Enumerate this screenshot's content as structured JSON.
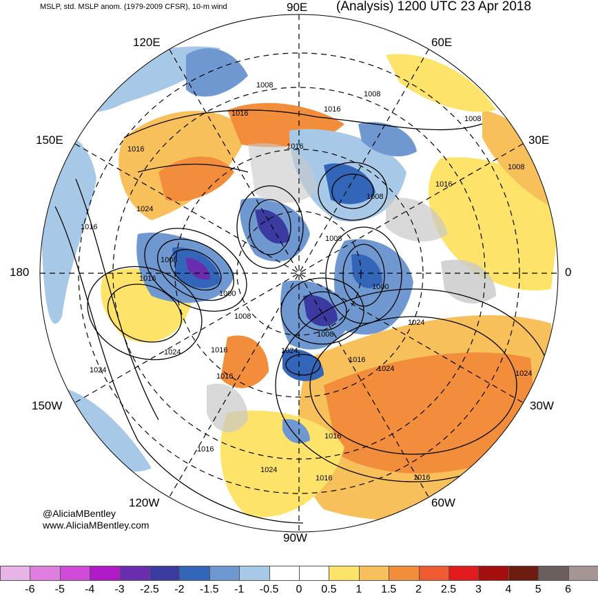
{
  "header": {
    "product": "MSLP, std. MSLP anom. (1979-2009 CFSR), 10-m wind",
    "valid": "(Analysis) 1200 UTC 23 Apr 2018"
  },
  "longitude_labels": {
    "e90": "90E",
    "e60": "60E",
    "e30": "30E",
    "zero": "0",
    "w30": "30W",
    "w60": "60W",
    "w90": "90W",
    "w120": "120W",
    "w150": "150W",
    "dl180": "180",
    "e150": "150E",
    "e120": "120E"
  },
  "credits": {
    "handle": "@AliciaMBentley",
    "site": "www.AliciaMBentley.com"
  },
  "isobar_labels": [
    {
      "text": "1008",
      "region": "east-siberia"
    },
    {
      "text": "1008",
      "region": "central-asia"
    },
    {
      "text": "1016",
      "region": "mongolia"
    },
    {
      "text": "1008",
      "region": "europe-north"
    },
    {
      "text": "1008",
      "region": "west-europe"
    },
    {
      "text": "1016",
      "region": "china"
    },
    {
      "text": "1016",
      "region": "east-asia"
    },
    {
      "text": "1016",
      "region": "near-east"
    },
    {
      "text": "1024",
      "region": "pacific-west"
    },
    {
      "text": "1008",
      "region": "scandinavia"
    },
    {
      "text": "1008",
      "region": "arctic"
    },
    {
      "text": "1016",
      "region": "north-pacific"
    },
    {
      "text": "1008",
      "region": "bering-low"
    },
    {
      "text": "1016",
      "region": "bering-sea"
    },
    {
      "text": "1000",
      "region": "aleutian-low"
    },
    {
      "text": "1000",
      "region": "iceland-low"
    },
    {
      "text": "1008",
      "region": "alaska"
    },
    {
      "text": "1008",
      "region": "canada"
    },
    {
      "text": "1024",
      "region": "atlantic-high"
    },
    {
      "text": "1024",
      "region": "gulf-of-alaska"
    },
    {
      "text": "1016",
      "region": "pacific-northwest"
    },
    {
      "text": "1024",
      "region": "canada-high"
    },
    {
      "text": "1024",
      "region": "hudson-bay"
    },
    {
      "text": "1016",
      "region": "labrador"
    },
    {
      "text": "1024",
      "region": "central-atlantic"
    },
    {
      "text": "1016",
      "region": "azores"
    },
    {
      "text": "1024",
      "region": "california"
    },
    {
      "text": "1016",
      "region": "subtropical-pacific"
    },
    {
      "text": "1016",
      "region": "gulf-of-mexico"
    },
    {
      "text": "1024",
      "region": "western-atlantic"
    },
    {
      "text": "1016",
      "region": "mexico"
    },
    {
      "text": "1016",
      "region": "caribbean"
    },
    {
      "text": "1016",
      "region": "mid-atlantic-south"
    }
  ],
  "colorbar": {
    "labels": [
      "-6",
      "-5",
      "-4",
      "-3",
      "-2.5",
      "-2",
      "-1.5",
      "-1",
      "-0.5",
      "0",
      "0.5",
      "1",
      "1.5",
      "2",
      "2.5",
      "3",
      "4",
      "5",
      "6"
    ],
    "colors": [
      "#e8b4e8",
      "#e07ee0",
      "#d04ad8",
      "#b019c8",
      "#6a2db0",
      "#3b3aa0",
      "#3366b8",
      "#6f98d0",
      "#a8c8e8",
      "#ffffff",
      "#ffffff",
      "#fde36a",
      "#f8c05a",
      "#f28d3c",
      "#ef5a30",
      "#e21c1c",
      "#a40e0e",
      "#6e1c10",
      "#6a5e5e",
      "#a59595"
    ]
  }
}
